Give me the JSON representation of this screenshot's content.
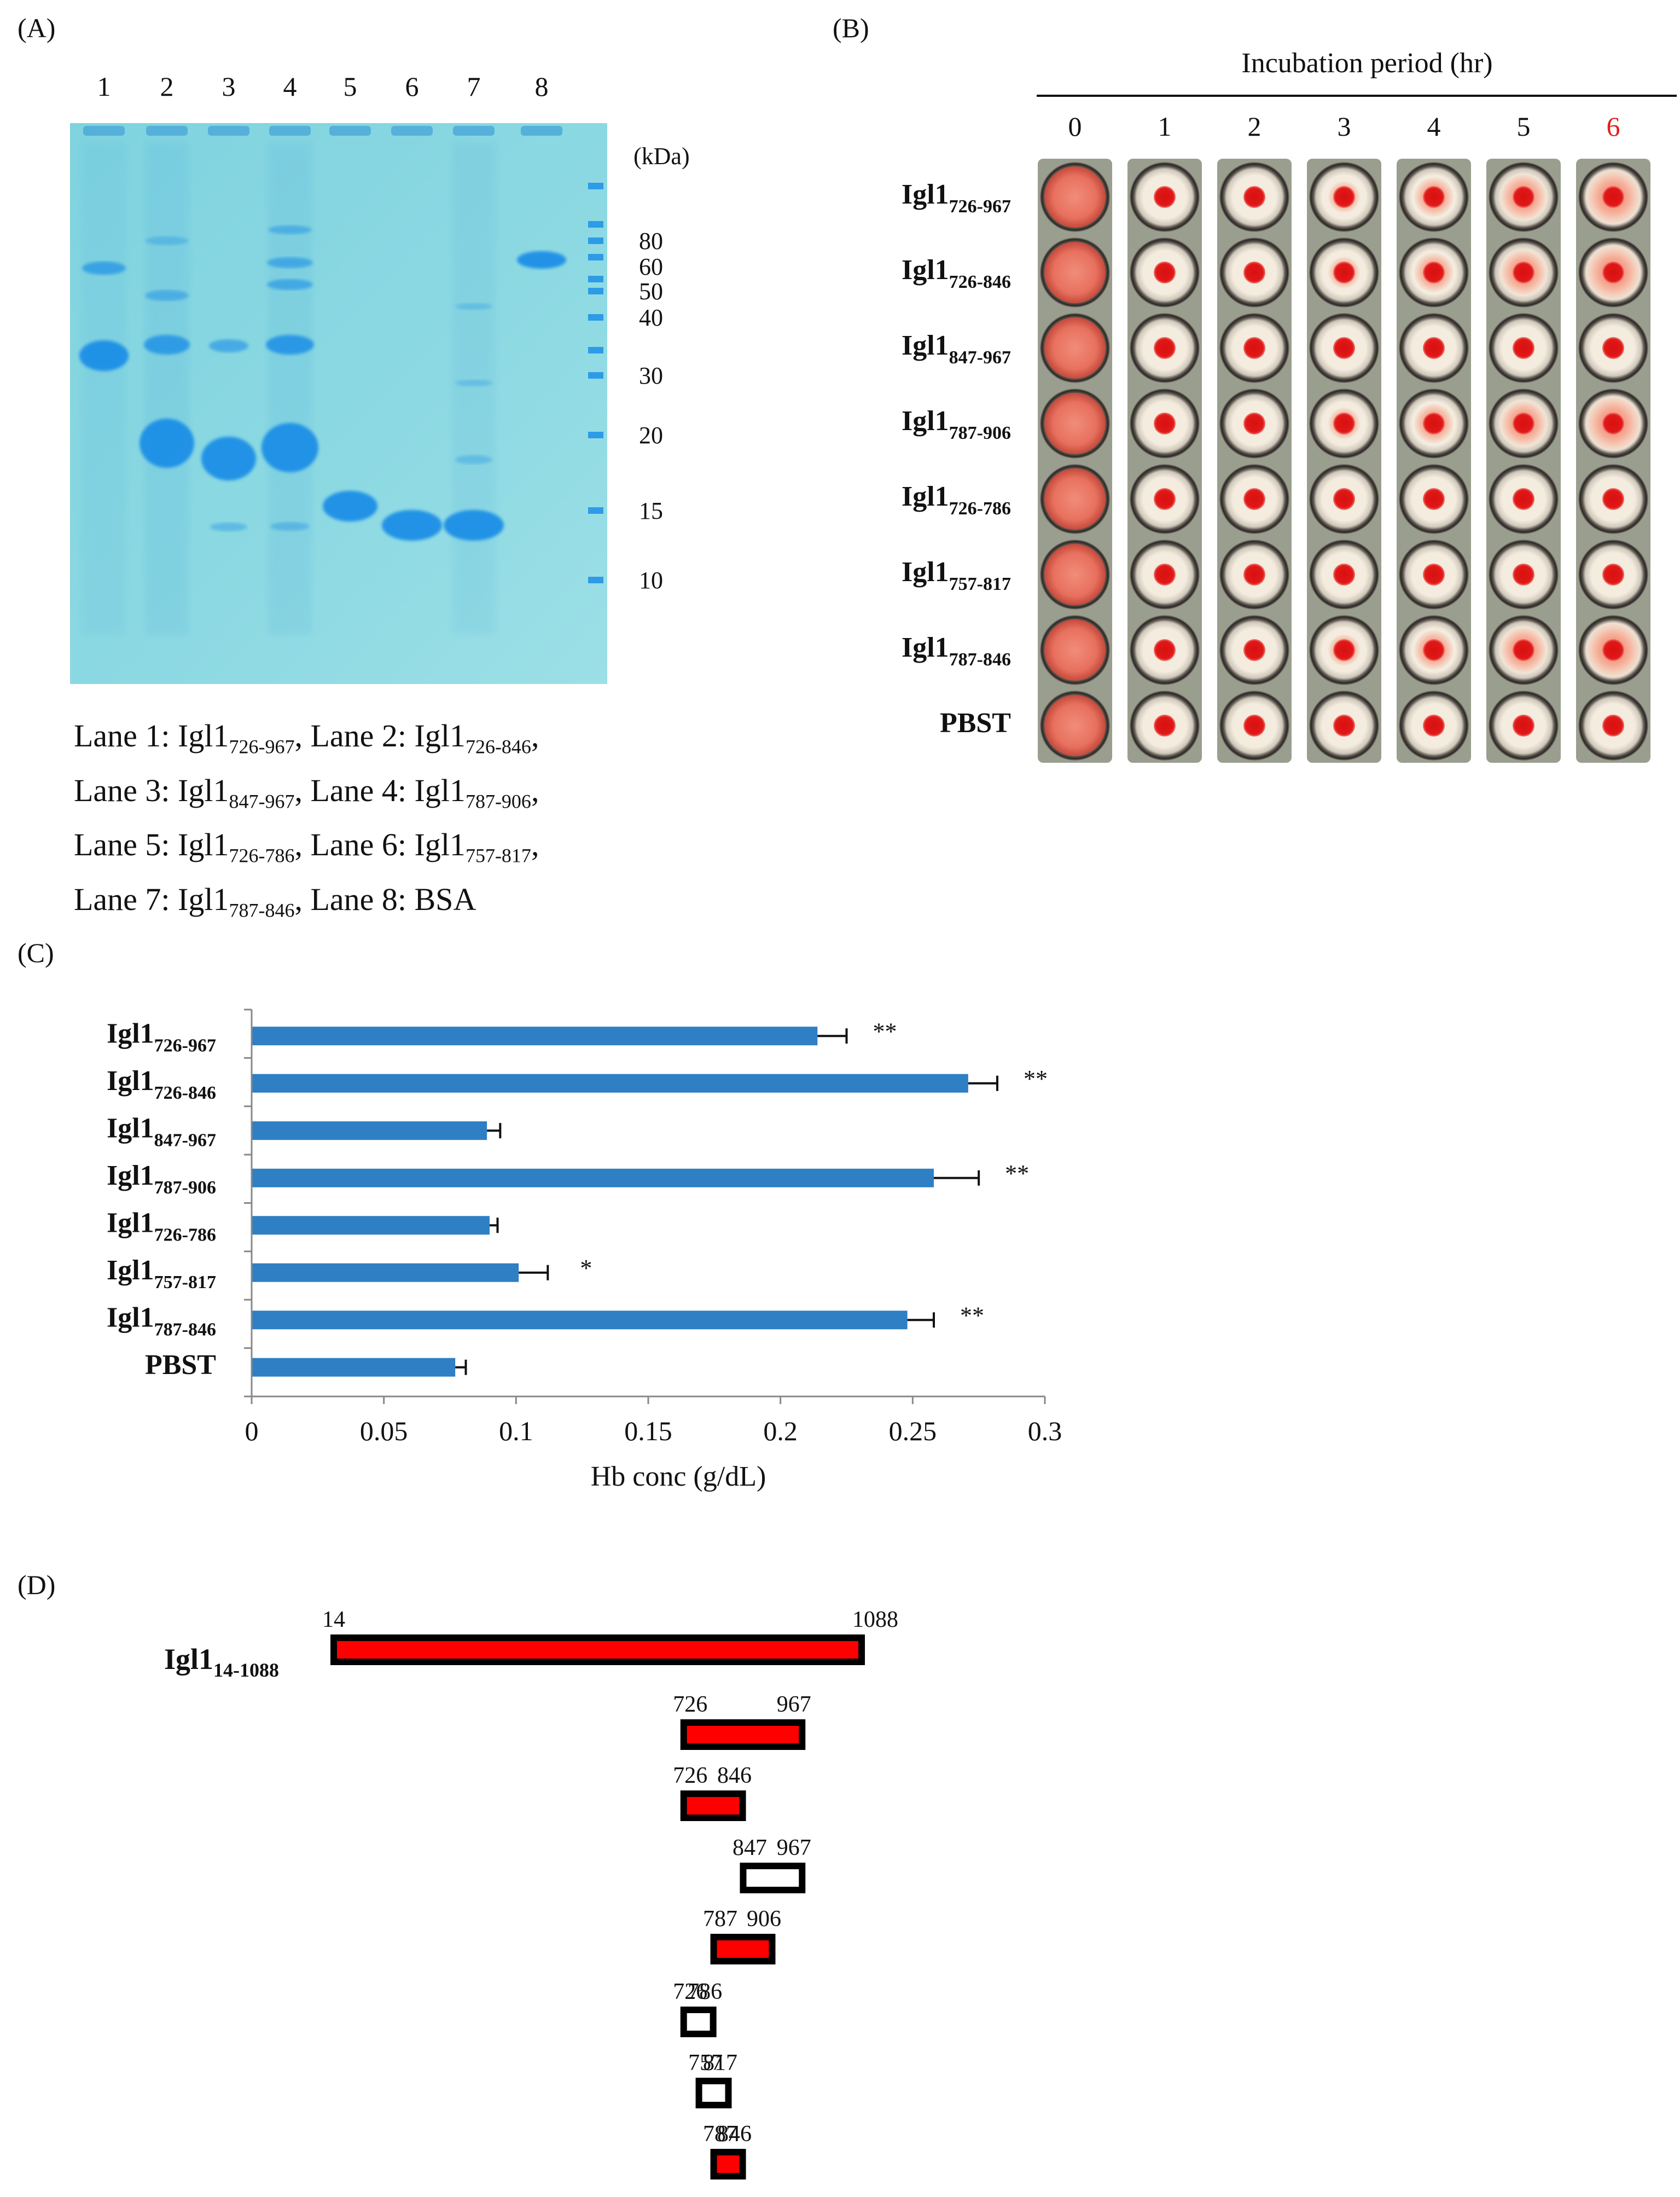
{
  "panelA": {
    "label": "(A)",
    "lane_numbers": [
      "1",
      "2",
      "3",
      "4",
      "5",
      "6",
      "7",
      "8"
    ],
    "kda_label": "(kDa)",
    "markers": [
      "80",
      "60",
      "50",
      "40",
      "30",
      "20",
      "15",
      "10"
    ],
    "legend": [
      {
        "lane": "Lane 1: ",
        "name": "Igl1",
        "sub": "726-967",
        "sep": ", "
      },
      {
        "lane": "Lane 2: ",
        "name": "Igl1",
        "sub": "726-846",
        "sep": ","
      },
      {
        "lane": "Lane 3: ",
        "name": "Igl1",
        "sub": "847-967",
        "sep": ", "
      },
      {
        "lane": "Lane 4: ",
        "name": "Igl1",
        "sub": "787-906",
        "sep": ","
      },
      {
        "lane": "Lane 5: ",
        "name": "Igl1",
        "sub": "726-786",
        "sep": ", "
      },
      {
        "lane": "Lane 6: ",
        "name": "Igl1",
        "sub": "757-817",
        "sep": ","
      },
      {
        "lane": "Lane 7: ",
        "name": "Igl1",
        "sub": "787-846",
        "sep": ", "
      },
      {
        "lane": "Lane 8: BSA",
        "name": "",
        "sub": "",
        "sep": ""
      }
    ]
  },
  "panelB": {
    "label": "(B)",
    "title": "Incubation period (hr)",
    "hours": [
      "0",
      "1",
      "2",
      "3",
      "4",
      "5",
      "6"
    ],
    "highlight_color": "#e0201b",
    "rows": [
      {
        "name": "Igl1",
        "sub": "726-967"
      },
      {
        "name": "Igl1",
        "sub": "726-846"
      },
      {
        "name": "Igl1",
        "sub": "847-967"
      },
      {
        "name": "Igl1",
        "sub": "787-906"
      },
      {
        "name": "Igl1",
        "sub": "726-786"
      },
      {
        "name": "Igl1",
        "sub": "757-817"
      },
      {
        "name": "Igl1",
        "sub": "787-846"
      },
      {
        "name": "PBST",
        "sub": ""
      }
    ]
  },
  "chart_data": {
    "type": "bar",
    "orientation": "horizontal",
    "title": "",
    "panel_label": "(C)",
    "xlabel": "Hb conc (g/dL)",
    "ylabel": "",
    "xlim": [
      0,
      0.3
    ],
    "xticks": [
      "0",
      "0.05",
      "0.1",
      "0.15",
      "0.2",
      "0.25",
      "0.3"
    ],
    "bar_color": "#2e7fc4",
    "categories": [
      {
        "name": "Igl1",
        "sub": "726-967"
      },
      {
        "name": "Igl1",
        "sub": "726-846"
      },
      {
        "name": "Igl1",
        "sub": "847-967"
      },
      {
        "name": "Igl1",
        "sub": "787-906"
      },
      {
        "name": "Igl1",
        "sub": "726-786"
      },
      {
        "name": "Igl1",
        "sub": "757-817"
      },
      {
        "name": "Igl1",
        "sub": "787-846"
      },
      {
        "name": "PBST",
        "sub": ""
      }
    ],
    "values": [
      0.214,
      0.271,
      0.089,
      0.258,
      0.09,
      0.101,
      0.248,
      0.077
    ],
    "errors": [
      0.011,
      0.011,
      0.005,
      0.017,
      0.003,
      0.011,
      0.01,
      0.004
    ],
    "significance": [
      "**",
      "**",
      "",
      "**",
      "",
      "*",
      "**",
      ""
    ]
  },
  "panelD": {
    "label": "(D)",
    "full_name": "Igl1",
    "full_sub": "14-1088",
    "fill_color": "#ff0000",
    "constructs": [
      {
        "start": "14",
        "end": "1088",
        "s": 14,
        "e": 1088,
        "active": true
      },
      {
        "start": "726",
        "end": "967",
        "s": 726,
        "e": 967,
        "active": true
      },
      {
        "start": "726",
        "end": "846",
        "s": 726,
        "e": 846,
        "active": true
      },
      {
        "start": "847",
        "end": "967",
        "s": 847,
        "e": 967,
        "active": false
      },
      {
        "start": "787",
        "end": "906",
        "s": 787,
        "e": 906,
        "active": true
      },
      {
        "start": "726",
        "end": "786",
        "s": 726,
        "e": 786,
        "active": false
      },
      {
        "start": "757",
        "end": "817",
        "s": 757,
        "e": 817,
        "active": false
      },
      {
        "start": "787",
        "end": "846",
        "s": 787,
        "e": 846,
        "active": true
      }
    ]
  }
}
